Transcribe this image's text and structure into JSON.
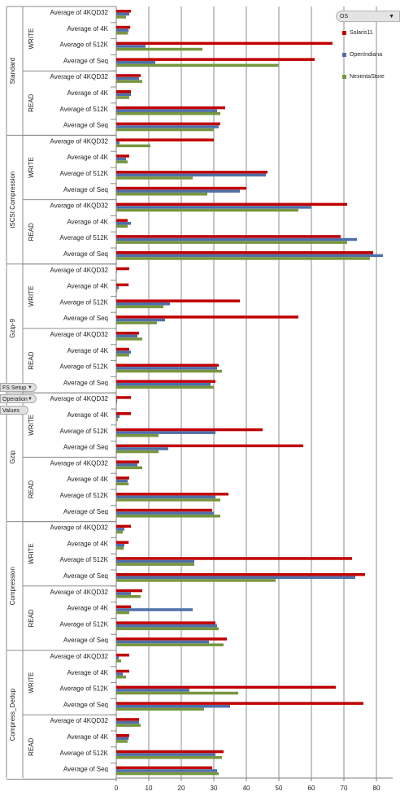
{
  "filter": {
    "label": "OS",
    "arrow": "▼"
  },
  "row_buttons": [
    {
      "label": "FS Setup",
      "arrow": "▼"
    },
    {
      "label": "Operation",
      "arrow": "▼"
    },
    {
      "label": "Values",
      "arrow": ""
    }
  ],
  "colors": {
    "Solaris11": "#c00000",
    "OpenIndiana": "#4f6fa8",
    "NexentaStore": "#77963e"
  },
  "chart_data": {
    "type": "bar",
    "orientation": "horizontal",
    "xlim": [
      0,
      85
    ],
    "x_ticks": [
      0,
      10,
      20,
      30,
      40,
      50,
      60,
      70,
      80
    ],
    "grid": true,
    "legend_position": "top-right",
    "series_names": [
      "Solaris11",
      "OpenIndiana",
      "NexentaStore"
    ],
    "groups": [
      {
        "name": "Standard",
        "subgroups": [
          {
            "name": "WRITE",
            "rows": [
              {
                "label": "Average of 4KQD32",
                "values": [
                  4.5,
                  4.0,
                  3.0
                ]
              },
              {
                "label": "Average of 4K",
                "values": [
                  4.3,
                  3.8,
                  3.6
                ]
              },
              {
                "label": "Average of 512K",
                "values": [
                  66.5,
                  9.0,
                  26.5
                ]
              },
              {
                "label": "Average of Seq",
                "values": [
                  61.0,
                  12.0,
                  50.0
                ]
              }
            ]
          },
          {
            "name": "READ",
            "rows": [
              {
                "label": "Average of 4KQD32",
                "values": [
                  7.5,
                  7.0,
                  8.0
                ]
              },
              {
                "label": "Average of 4K",
                "values": [
                  4.5,
                  4.5,
                  4.0
                ]
              },
              {
                "label": "Average of 512K",
                "values": [
                  33.5,
                  31.0,
                  32.0
                ]
              },
              {
                "label": "Average of Seq",
                "values": [
                  32.0,
                  31.5,
                  30.0
                ]
              }
            ]
          }
        ]
      },
      {
        "name": "iSCSI Compression",
        "subgroups": [
          {
            "name": "WRITE",
            "rows": [
              {
                "label": "Average of 4KQD32",
                "values": [
                  30.0,
                  1.0,
                  10.5
                ]
              },
              {
                "label": "Average of 4K",
                "values": [
                  4.0,
                  3.0,
                  3.5
                ]
              },
              {
                "label": "Average of 512K",
                "values": [
                  46.5,
                  46.0,
                  23.5
                ]
              },
              {
                "label": "Average of Seq",
                "values": [
                  40.0,
                  38.0,
                  28.0
                ]
              }
            ]
          },
          {
            "name": "READ",
            "rows": [
              {
                "label": "Average of 4KQD32",
                "values": [
                  71.0,
                  60.0,
                  56.0
                ]
              },
              {
                "label": "Average of 4K",
                "values": [
                  3.5,
                  4.5,
                  3.5
                ]
              },
              {
                "label": "Average of 512K",
                "values": [
                  69.0,
                  74.0,
                  71.0
                ]
              },
              {
                "label": "Average of Seq",
                "values": [
                  79.0,
                  82.0,
                  78.0
                ]
              }
            ]
          }
        ]
      },
      {
        "name": "Gzip-9",
        "subgroups": [
          {
            "name": "WRITE",
            "rows": [
              {
                "label": "Average of 4KQD32",
                "values": [
                  4.0,
                  0.2,
                  0.1
                ]
              },
              {
                "label": "Average of 4K",
                "values": [
                  3.8,
                  0.8,
                  0.3
                ]
              },
              {
                "label": "Average of 512K",
                "values": [
                  38.0,
                  16.5,
                  14.5
                ]
              },
              {
                "label": "Average of Seq",
                "values": [
                  56.0,
                  15.0,
                  12.5
                ]
              }
            ]
          },
          {
            "name": "READ",
            "rows": [
              {
                "label": "Average of 4KQD32",
                "values": [
                  7.0,
                  6.5,
                  8.0
                ]
              },
              {
                "label": "Average of 4K",
                "values": [
                  4.0,
                  4.5,
                  4.0
                ]
              },
              {
                "label": "Average of 512K",
                "values": [
                  31.5,
                  31.0,
                  32.5
                ]
              },
              {
                "label": "Average of Seq",
                "values": [
                  30.5,
                  29.0,
                  30.0
                ]
              }
            ]
          }
        ]
      },
      {
        "name": "Gzip",
        "subgroups": [
          {
            "name": "WRITE",
            "rows": [
              {
                "label": "Average of 4KQD32",
                "values": [
                  4.5,
                  0.3,
                  0.2
                ]
              },
              {
                "label": "Average of 4K",
                "values": [
                  4.5,
                  1.0,
                  0.5
                ]
              },
              {
                "label": "Average of 512K",
                "values": [
                  45.0,
                  30.5,
                  13.0
                ]
              },
              {
                "label": "Average of Seq",
                "values": [
                  57.5,
                  16.0,
                  13.0
                ]
              }
            ]
          },
          {
            "name": "READ",
            "rows": [
              {
                "label": "Average of 4KQD32",
                "values": [
                  7.0,
                  6.5,
                  8.0
                ]
              },
              {
                "label": "Average of 4K",
                "values": [
                  4.0,
                  3.5,
                  3.8
                ]
              },
              {
                "label": "Average of 512K",
                "values": [
                  34.5,
                  30.5,
                  32.0
                ]
              },
              {
                "label": "Average of Seq",
                "values": [
                  29.5,
                  30.0,
                  32.0
                ]
              }
            ]
          }
        ]
      },
      {
        "name": "Compression",
        "subgroups": [
          {
            "name": "WRITE",
            "rows": [
              {
                "label": "Average of 4KQD32",
                "values": [
                  4.5,
                  2.5,
                  2.0
                ]
              },
              {
                "label": "Average of 4K",
                "values": [
                  3.8,
                  2.5,
                  2.3
                ]
              },
              {
                "label": "Average of 512K",
                "values": [
                  72.5,
                  24.0,
                  24.0
                ]
              },
              {
                "label": "Average of Seq",
                "values": [
                  76.5,
                  73.5,
                  49.0
                ]
              }
            ]
          },
          {
            "name": "READ",
            "rows": [
              {
                "label": "Average of 4KQD32",
                "values": [
                  8.0,
                  4.5,
                  7.5
                ]
              },
              {
                "label": "Average of 4K",
                "values": [
                  4.5,
                  23.5,
                  4.0
                ]
              },
              {
                "label": "Average of 512K",
                "values": [
                  30.5,
                  31.0,
                  31.5
                ]
              },
              {
                "label": "Average of Seq",
                "values": [
                  34.0,
                  28.5,
                  33.0
                ]
              }
            ]
          }
        ]
      },
      {
        "name": "Compress_Dedup",
        "subgroups": [
          {
            "name": "WRITE",
            "rows": [
              {
                "label": "Average of 4KQD32",
                "values": [
                  4.0,
                  0.8,
                  1.5
                ]
              },
              {
                "label": "Average of 4K",
                "values": [
                  4.0,
                  2.0,
                  3.0
                ]
              },
              {
                "label": "Average of 512K",
                "values": [
                  67.5,
                  22.5,
                  37.5
                ]
              },
              {
                "label": "Average of Seq",
                "values": [
                  76.0,
                  35.0,
                  27.0
                ]
              }
            ]
          },
          {
            "name": "READ",
            "rows": [
              {
                "label": "Average of 4KQD32",
                "values": [
                  7.0,
                  7.0,
                  7.5
                ]
              },
              {
                "label": "Average of 4K",
                "values": [
                  4.0,
                  3.8,
                  3.5
                ]
              },
              {
                "label": "Average of 512K",
                "values": [
                  33.0,
                  30.5,
                  32.5
                ]
              },
              {
                "label": "Average of Seq",
                "values": [
                  29.5,
                  31.0,
                  31.5
                ]
              }
            ]
          }
        ]
      }
    ]
  }
}
